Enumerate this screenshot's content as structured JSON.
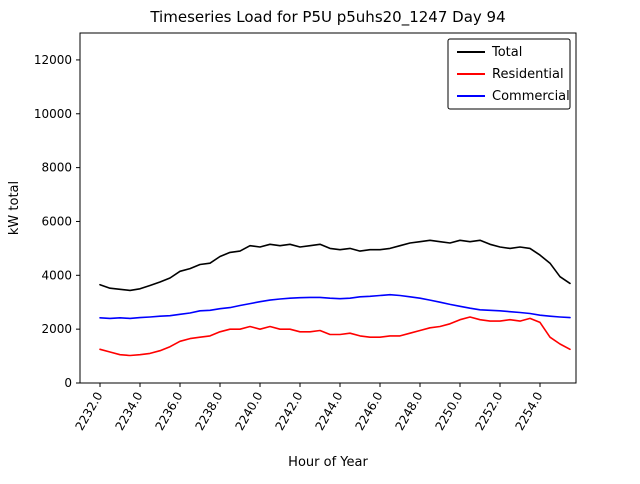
{
  "figure": {
    "title": "Timeseries Load for P5U p5uhs20_1247  Day 94",
    "xlabel": "Hour of Year",
    "ylabel": "kW total"
  },
  "chart_data": {
    "type": "line",
    "title": "Timeseries Load for P5U p5uhs20_1247  Day 94",
    "xlabel": "Hour of Year",
    "ylabel": "kW total",
    "grid": false,
    "legend_position": "upper right",
    "xlim": [
      2231.0,
      2255.8
    ],
    "ylim": [
      0,
      13000
    ],
    "xticks": [
      2232,
      2234,
      2236,
      2238,
      2240,
      2242,
      2244,
      2246,
      2248,
      2250,
      2252,
      2254
    ],
    "xtick_labels": [
      "2232.0",
      "2234.0",
      "2236.0",
      "2238.0",
      "2240.0",
      "2242.0",
      "2244.0",
      "2246.0",
      "2248.0",
      "2250.0",
      "2252.0",
      "2254.0"
    ],
    "yticks": [
      0,
      2000,
      4000,
      6000,
      8000,
      10000,
      12000
    ],
    "ytick_labels": [
      "0",
      "2000",
      "4000",
      "6000",
      "8000",
      "10000",
      "12000"
    ],
    "x": [
      2232.0,
      2232.5,
      2233.0,
      2233.5,
      2234.0,
      2234.5,
      2235.0,
      2235.5,
      2236.0,
      2236.5,
      2237.0,
      2237.5,
      2238.0,
      2238.5,
      2239.0,
      2239.5,
      2240.0,
      2240.5,
      2241.0,
      2241.5,
      2242.0,
      2242.5,
      2243.0,
      2243.5,
      2244.0,
      2244.5,
      2245.0,
      2245.5,
      2246.0,
      2246.5,
      2247.0,
      2247.5,
      2248.0,
      2248.5,
      2249.0,
      2249.5,
      2250.0,
      2250.5,
      2251.0,
      2251.5,
      2252.0,
      2252.5,
      2253.0,
      2253.5,
      2254.0,
      2254.5,
      2255.0,
      2255.5
    ],
    "series": [
      {
        "name": "Total",
        "color": "#000000",
        "values": [
          3650,
          3520,
          3480,
          3440,
          3500,
          3620,
          3750,
          3900,
          4150,
          4250,
          4400,
          4450,
          4700,
          4850,
          4900,
          5100,
          5050,
          5150,
          5100,
          5150,
          5050,
          5100,
          5150,
          5000,
          4950,
          5000,
          4900,
          4950,
          4950,
          5000,
          5100,
          5200,
          5250,
          5300,
          5250,
          5200,
          5300,
          5250,
          5300,
          5150,
          5050,
          5000,
          5050,
          5000,
          4750,
          4450,
          3950,
          3700
        ]
      },
      {
        "name": "Residential",
        "color": "#ff0000",
        "values": [
          1250,
          1150,
          1050,
          1020,
          1050,
          1100,
          1200,
          1350,
          1550,
          1650,
          1700,
          1750,
          1900,
          2000,
          2000,
          2100,
          2000,
          2100,
          2000,
          2000,
          1900,
          1900,
          1950,
          1800,
          1800,
          1850,
          1750,
          1700,
          1700,
          1750,
          1750,
          1850,
          1950,
          2050,
          2100,
          2200,
          2350,
          2450,
          2350,
          2300,
          2300,
          2350,
          2300,
          2400,
          2250,
          1700,
          1450,
          1250
        ]
      },
      {
        "name": "Commercial",
        "color": "#0000ff",
        "values": [
          2420,
          2400,
          2420,
          2400,
          2430,
          2450,
          2480,
          2500,
          2550,
          2600,
          2680,
          2700,
          2760,
          2800,
          2880,
          2950,
          3020,
          3080,
          3120,
          3150,
          3170,
          3180,
          3180,
          3150,
          3130,
          3150,
          3200,
          3220,
          3250,
          3280,
          3250,
          3200,
          3150,
          3080,
          3000,
          2920,
          2850,
          2780,
          2720,
          2700,
          2680,
          2650,
          2620,
          2580,
          2520,
          2480,
          2450,
          2430
        ]
      }
    ]
  }
}
